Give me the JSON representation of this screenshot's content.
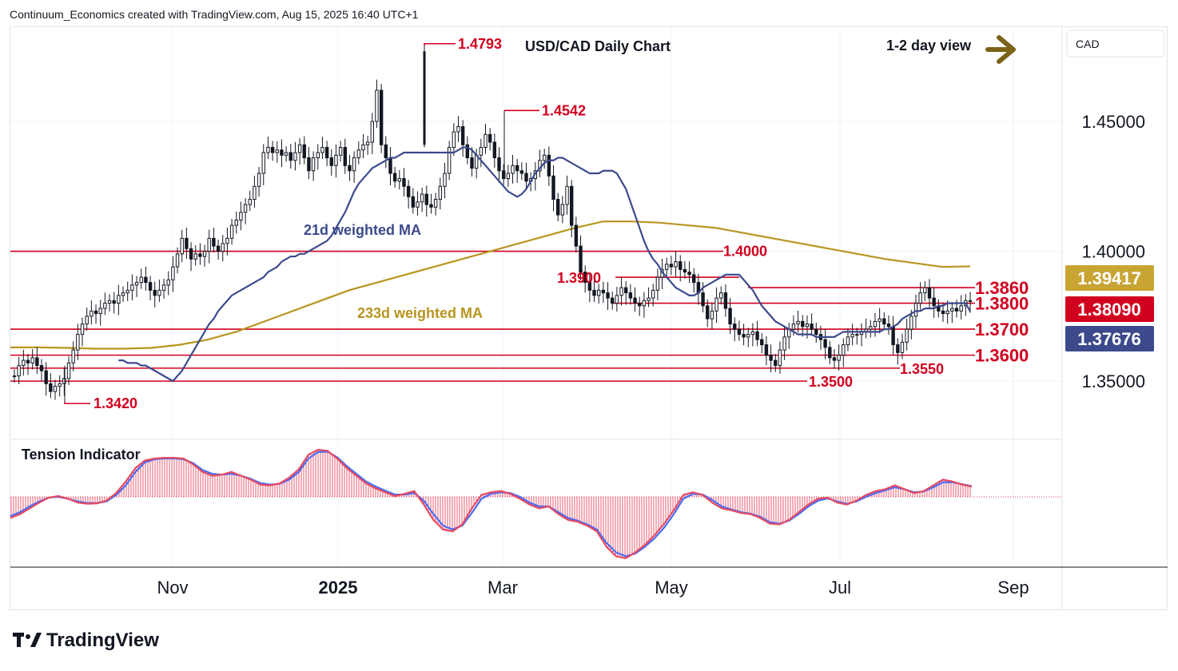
{
  "header": "Continuum_Economics created with TradingView.com, Aug 15, 2025 16:40 UTC+1",
  "brand": "TradingView",
  "chart_data": {
    "type": "candlestick",
    "title": "USD/CAD Daily Chart",
    "view_label": "1-2 day view",
    "axis_currency": "CAD",
    "y_ticks": [
      "1.45000",
      "1.40000",
      "1.35000"
    ],
    "y_tick_values": [
      1.45,
      1.4,
      1.35
    ],
    "x_ticks": [
      "Nov",
      "2025",
      "Mar",
      "May",
      "Jul",
      "Sep"
    ],
    "ylim": [
      1.328,
      1.486
    ],
    "price_tags": [
      {
        "label": "1.39417",
        "value": 1.39417,
        "color": "#c8a533"
      },
      {
        "label": "1.38090",
        "value": 1.3809,
        "color": "#d1001f"
      },
      {
        "label": "1.37676",
        "value": 1.37676,
        "color": "#3c4a8c"
      }
    ],
    "levels": [
      {
        "label": "1.3860",
        "value": 1.386
      },
      {
        "label": "1.3800",
        "value": 1.38
      },
      {
        "label": "1.3700",
        "value": 1.37
      },
      {
        "label": "1.3600",
        "value": 1.36
      },
      {
        "label": "1.3550",
        "value": 1.355
      },
      {
        "label": "1.3500",
        "value": 1.35
      },
      {
        "label": "1.4000",
        "value": 1.4
      },
      {
        "label": "1.3900",
        "value": 1.39
      }
    ],
    "annotations": [
      {
        "label": "1.4793",
        "value": 1.4793
      },
      {
        "label": "1.4542",
        "value": 1.4542
      },
      {
        "label": "1.3420",
        "value": 1.342
      },
      {
        "label": "21d weighted MA"
      },
      {
        "label": "233d weighted MA"
      }
    ],
    "closes": [
      1.352,
      1.356,
      1.358,
      1.357,
      1.359,
      1.356,
      1.354,
      1.349,
      1.346,
      1.348,
      1.349,
      1.351,
      1.357,
      1.362,
      1.368,
      1.372,
      1.375,
      1.377,
      1.376,
      1.378,
      1.38,
      1.381,
      1.38,
      1.383,
      1.384,
      1.385,
      1.387,
      1.388,
      1.39,
      1.388,
      1.385,
      1.383,
      1.385,
      1.387,
      1.389,
      1.394,
      1.399,
      1.405,
      1.401,
      1.397,
      1.399,
      1.398,
      1.4,
      1.405,
      1.402,
      1.4,
      1.403,
      1.405,
      1.41,
      1.412,
      1.415,
      1.418,
      1.42,
      1.425,
      1.43,
      1.438,
      1.44,
      1.438,
      1.439,
      1.437,
      1.438,
      1.435,
      1.438,
      1.441,
      1.436,
      1.431,
      1.436,
      1.438,
      1.44,
      1.436,
      1.433,
      1.437,
      1.44,
      1.433,
      1.431,
      1.436,
      1.439,
      1.441,
      1.442,
      1.45,
      1.462,
      1.441,
      1.436,
      1.43,
      1.427,
      1.428,
      1.425,
      1.421,
      1.417,
      1.419,
      1.422,
      1.418,
      1.417,
      1.42,
      1.425,
      1.43,
      1.44,
      1.446,
      1.448,
      1.441,
      1.436,
      1.432,
      1.437,
      1.44,
      1.445,
      1.442,
      1.436,
      1.431,
      1.428,
      1.43,
      1.433,
      1.431,
      1.43,
      1.427,
      1.428,
      1.431,
      1.435,
      1.437,
      1.429,
      1.42,
      1.414,
      1.418,
      1.425,
      1.41,
      1.402,
      1.392,
      1.388,
      1.385,
      1.383,
      1.385,
      1.384,
      1.382,
      1.38,
      1.383,
      1.386,
      1.384,
      1.382,
      1.38,
      1.379,
      1.381,
      1.382,
      1.385,
      1.39,
      1.393,
      1.395,
      1.394,
      1.396,
      1.393,
      1.392,
      1.391,
      1.388,
      1.384,
      1.379,
      1.374,
      1.377,
      1.382,
      1.384,
      1.378,
      1.372,
      1.37,
      1.368,
      1.367,
      1.368,
      1.369,
      1.366,
      1.364,
      1.36,
      1.358,
      1.356,
      1.362,
      1.367,
      1.37,
      1.372,
      1.373,
      1.371,
      1.372,
      1.37,
      1.368,
      1.366,
      1.363,
      1.359,
      1.358,
      1.36,
      1.364,
      1.367,
      1.368,
      1.368,
      1.369,
      1.37,
      1.371,
      1.373,
      1.374,
      1.372,
      1.371,
      1.364,
      1.361,
      1.365,
      1.37,
      1.375,
      1.38,
      1.384,
      1.386,
      1.382,
      1.379,
      1.377,
      1.376,
      1.377,
      1.378,
      1.377,
      1.379,
      1.381,
      1.3809
    ],
    "ma21": [
      1.358,
      1.358,
      1.357,
      1.357,
      1.357,
      1.356,
      1.356,
      1.355,
      1.354,
      1.353,
      1.352,
      1.351,
      1.35,
      1.352,
      1.354,
      1.357,
      1.36,
      1.363,
      1.366,
      1.369,
      1.372,
      1.374,
      1.377,
      1.379,
      1.381,
      1.383,
      1.384,
      1.385,
      1.386,
      1.387,
      1.388,
      1.389,
      1.39,
      1.392,
      1.393,
      1.394,
      1.396,
      1.397,
      1.398,
      1.398,
      1.399,
      1.399,
      1.4,
      1.401,
      1.402,
      1.403,
      1.404,
      1.406,
      1.409,
      1.412,
      1.415,
      1.419,
      1.423,
      1.426,
      1.428,
      1.43,
      1.432,
      1.433,
      1.434,
      1.435,
      1.436,
      1.436,
      1.437,
      1.438,
      1.438,
      1.438,
      1.438,
      1.438,
      1.438,
      1.438,
      1.438,
      1.438,
      1.438,
      1.438,
      1.438,
      1.439,
      1.44,
      1.44,
      1.439,
      1.437,
      1.435,
      1.433,
      1.431,
      1.429,
      1.427,
      1.425,
      1.423,
      1.422,
      1.421,
      1.422,
      1.424,
      1.427,
      1.43,
      1.432,
      1.434,
      1.435,
      1.435,
      1.436,
      1.436,
      1.435,
      1.434,
      1.433,
      1.432,
      1.431,
      1.43,
      1.43,
      1.43,
      1.431,
      1.431,
      1.431,
      1.43,
      1.427,
      1.424,
      1.419,
      1.414,
      1.409,
      1.404,
      1.4,
      1.397,
      1.395,
      1.392,
      1.39,
      1.388,
      1.386,
      1.385,
      1.384,
      1.383,
      1.383,
      1.384,
      1.386,
      1.387,
      1.388,
      1.389,
      1.39,
      1.391,
      1.391,
      1.391,
      1.391,
      1.389,
      1.387,
      1.385,
      1.382,
      1.379,
      1.377,
      1.375,
      1.373,
      1.372,
      1.371,
      1.37,
      1.369,
      1.368,
      1.368,
      1.368,
      1.368,
      1.367,
      1.367,
      1.367,
      1.367,
      1.367,
      1.368,
      1.369,
      1.369,
      1.369,
      1.369,
      1.369,
      1.369,
      1.369,
      1.369,
      1.369,
      1.37,
      1.37,
      1.371,
      1.372,
      1.374,
      1.375,
      1.376,
      1.377,
      1.377,
      1.378,
      1.378,
      1.378,
      1.379,
      1.379,
      1.38,
      1.38,
      1.38,
      1.38,
      1.38,
      1.3768
    ],
    "ma233": [
      1.363,
      1.363,
      1.3628,
      1.3625,
      1.3625,
      1.3628,
      1.364,
      1.366,
      1.369,
      1.373,
      1.377,
      1.381,
      1.385,
      1.388,
      1.391,
      1.394,
      1.397,
      1.4,
      1.403,
      1.406,
      1.409,
      1.4115,
      1.4115,
      1.411,
      1.41,
      1.409,
      1.407,
      1.405,
      1.403,
      1.401,
      1.399,
      1.397,
      1.3955,
      1.394,
      1.3942
    ],
    "tension": [
      -0.55,
      -0.45,
      -0.3,
      -0.15,
      -0.02,
      0.02,
      -0.05,
      -0.15,
      -0.18,
      -0.17,
      -0.1,
      0.1,
      0.4,
      0.75,
      0.95,
      1.0,
      1.02,
      1.02,
      1.0,
      0.85,
      0.65,
      0.55,
      0.58,
      0.65,
      0.55,
      0.45,
      0.32,
      0.3,
      0.35,
      0.5,
      0.72,
      1.1,
      1.23,
      1.2,
      1.0,
      0.75,
      0.55,
      0.35,
      0.22,
      0.12,
      0.02,
      0.08,
      0.15,
      -0.2,
      -0.6,
      -0.85,
      -0.9,
      -0.72,
      -0.3,
      0.05,
      0.12,
      0.15,
      0.08,
      -0.05,
      -0.2,
      -0.3,
      -0.25,
      -0.45,
      -0.6,
      -0.65,
      -0.75,
      -0.9,
      -1.3,
      -1.55,
      -1.6,
      -1.45,
      -1.25,
      -1.0,
      -0.7,
      -0.35,
      0.05,
      0.12,
      0.05,
      -0.15,
      -0.3,
      -0.35,
      -0.42,
      -0.45,
      -0.55,
      -0.7,
      -0.72,
      -0.6,
      -0.4,
      -0.2,
      -0.05,
      -0.02,
      -0.15,
      -0.2,
      -0.1,
      0.05,
      0.15,
      0.2,
      0.3,
      0.2,
      0.1,
      0.15,
      0.3,
      0.45,
      0.4,
      0.32,
      0.27
    ],
    "tension_signal": [
      -0.5,
      -0.4,
      -0.25,
      -0.12,
      -0.02,
      0.0,
      -0.05,
      -0.12,
      -0.16,
      -0.16,
      -0.12,
      0.05,
      0.3,
      0.65,
      0.9,
      0.98,
      1.0,
      1.0,
      0.98,
      0.88,
      0.7,
      0.6,
      0.58,
      0.6,
      0.55,
      0.47,
      0.36,
      0.32,
      0.34,
      0.45,
      0.65,
      1.0,
      1.17,
      1.18,
      1.03,
      0.8,
      0.6,
      0.4,
      0.27,
      0.16,
      0.06,
      0.06,
      0.1,
      -0.1,
      -0.45,
      -0.75,
      -0.85,
      -0.75,
      -0.42,
      -0.05,
      0.08,
      0.12,
      0.1,
      0.0,
      -0.15,
      -0.25,
      -0.25,
      -0.4,
      -0.55,
      -0.62,
      -0.72,
      -0.85,
      -1.2,
      -1.45,
      -1.55,
      -1.48,
      -1.3,
      -1.08,
      -0.8,
      -0.45,
      -0.05,
      0.08,
      0.06,
      -0.08,
      -0.25,
      -0.33,
      -0.4,
      -0.44,
      -0.52,
      -0.66,
      -0.7,
      -0.62,
      -0.45,
      -0.25,
      -0.1,
      -0.04,
      -0.12,
      -0.18,
      -0.12,
      0.0,
      0.1,
      0.17,
      0.25,
      0.2,
      0.12,
      0.14,
      0.25,
      0.38,
      0.38,
      0.33,
      0.28
    ],
    "indicator_title": "Tension Indicator"
  },
  "colors": {
    "up": "#131722",
    "down": "#131722",
    "level": "#d1001f",
    "ma21": "#3c4a8c",
    "ma233": "#b8951f",
    "tension_line": "#e84a5f",
    "tension_signal": "#4a6cf7",
    "arrow": "#7a6217",
    "grid": "#f0f3fa"
  }
}
